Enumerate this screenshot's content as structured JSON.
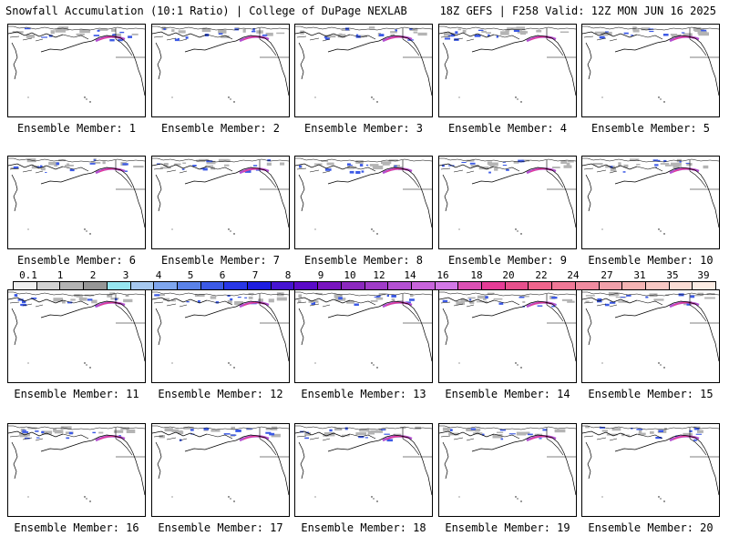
{
  "header": {
    "title_left": "Snowfall Accumulation (10:1 Ratio) | College of DuPage NEXLAB",
    "title_right": "18Z GEFS | F258 Valid: 12Z MON JUN 16 2025"
  },
  "panels": [
    {
      "label": "Ensemble Member: 1"
    },
    {
      "label": "Ensemble Member: 2"
    },
    {
      "label": "Ensemble Member: 3"
    },
    {
      "label": "Ensemble Member: 4"
    },
    {
      "label": "Ensemble Member: 5"
    },
    {
      "label": "Ensemble Member: 6"
    },
    {
      "label": "Ensemble Member: 7"
    },
    {
      "label": "Ensemble Member: 8"
    },
    {
      "label": "Ensemble Member: 9"
    },
    {
      "label": "Ensemble Member: 10"
    },
    {
      "label": "Ensemble Member: 11"
    },
    {
      "label": "Ensemble Member: 12"
    },
    {
      "label": "Ensemble Member: 13"
    },
    {
      "label": "Ensemble Member: 14"
    },
    {
      "label": "Ensemble Member: 15"
    },
    {
      "label": "Ensemble Member: 16"
    },
    {
      "label": "Ensemble Member: 17"
    },
    {
      "label": "Ensemble Member: 18"
    },
    {
      "label": "Ensemble Member: 19"
    },
    {
      "label": "Ensemble Member: 20"
    }
  ],
  "colorbar": {
    "ticks": [
      "0.1",
      "1",
      "2",
      "3",
      "4",
      "5",
      "6",
      "7",
      "8",
      "9",
      "10",
      "12",
      "14",
      "16",
      "18",
      "20",
      "22",
      "24",
      "27",
      "31",
      "35",
      "39"
    ],
    "colors": [
      "#f0f0f0",
      "#d2d2d2",
      "#b4b4b4",
      "#969696",
      "#96e6f0",
      "#a6c8f0",
      "#7fa6ee",
      "#5a82e8",
      "#3c5ae6",
      "#2837e6",
      "#1e1ee0",
      "#4614d2",
      "#5a0ac8",
      "#7814be",
      "#8c28be",
      "#a03cc8",
      "#b450d2",
      "#c864dc",
      "#d278e6",
      "#dc50b4",
      "#e63c96",
      "#e6508c",
      "#f0648c",
      "#f07896",
      "#f08ca0",
      "#f0a0aa",
      "#f5b4b4",
      "#f8c8c4",
      "#fadcd4",
      "#fcece4"
    ]
  },
  "palette": {
    "snow_gray": "#b4b4b4",
    "snow_blue": "#3c5ae6",
    "snow_purple": "#b450d2",
    "snow_pink": "#e63c96"
  }
}
